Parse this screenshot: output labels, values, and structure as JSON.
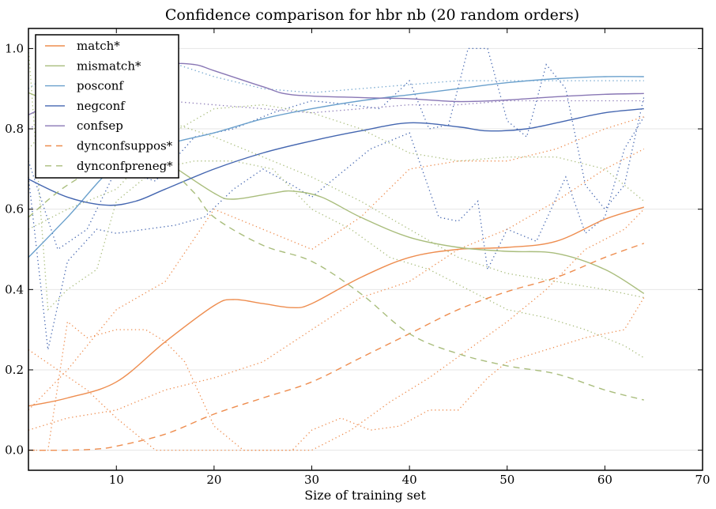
{
  "chart_data": {
    "type": "line",
    "title": "Confidence comparison for hbr nb (20 random orders)",
    "xlabel": "Size of training set",
    "ylabel": "",
    "xlim": [
      1,
      70
    ],
    "ylim": [
      -0.05,
      1.05
    ],
    "xticks": [
      10,
      20,
      30,
      40,
      50,
      60,
      70
    ],
    "xtick_labels": [
      "10",
      "20",
      "30",
      "40",
      "50",
      "60",
      "70"
    ],
    "yticks": [
      0.0,
      0.2,
      0.4,
      0.6,
      0.8,
      1.0
    ],
    "ytick_labels": [
      "0.0",
      "0.2",
      "0.4",
      "0.6",
      "0.8",
      "1.0"
    ],
    "grid": "horizontal",
    "legend_position": "top-left",
    "colors": {
      "match": "#ee8d4f",
      "mismatch": "#a9bd7c",
      "posconf": "#6aa0cc",
      "negconf": "#4466b0",
      "confsep": "#8977b5"
    },
    "series": [
      {
        "name": "match*",
        "style": "solid",
        "color": "#ee8d4f",
        "x": [
          1,
          5,
          10,
          15,
          20,
          22,
          25,
          28,
          30,
          35,
          40,
          45,
          50,
          55,
          60,
          64
        ],
        "y": [
          0.11,
          0.13,
          0.17,
          0.27,
          0.36,
          0.375,
          0.365,
          0.355,
          0.365,
          0.43,
          0.48,
          0.5,
          0.505,
          0.52,
          0.575,
          0.605
        ]
      },
      {
        "name": "mismatch*",
        "style": "solid",
        "color": "#a9bd7c",
        "x": [
          1,
          5,
          10,
          15,
          20,
          22,
          26,
          28,
          31,
          35,
          40,
          45,
          50,
          55,
          60,
          64
        ],
        "y": [
          0.89,
          0.85,
          0.8,
          0.72,
          0.64,
          0.625,
          0.64,
          0.645,
          0.63,
          0.58,
          0.53,
          0.505,
          0.495,
          0.49,
          0.45,
          0.39
        ]
      },
      {
        "name": "posconf",
        "style": "solid",
        "color": "#6aa0cc",
        "x": [
          1,
          5,
          10,
          15,
          20,
          25,
          30,
          35,
          40,
          45,
          50,
          55,
          60,
          64
        ],
        "y": [
          0.48,
          0.58,
          0.71,
          0.76,
          0.79,
          0.825,
          0.85,
          0.87,
          0.885,
          0.9,
          0.915,
          0.925,
          0.93,
          0.93
        ]
      },
      {
        "name": "negconf",
        "style": "solid",
        "color": "#4466b0",
        "x": [
          1,
          5,
          9,
          12,
          15,
          20,
          25,
          30,
          35,
          40,
          45,
          48,
          52,
          56,
          60,
          64
        ],
        "y": [
          0.675,
          0.63,
          0.61,
          0.62,
          0.65,
          0.7,
          0.74,
          0.77,
          0.795,
          0.815,
          0.805,
          0.795,
          0.8,
          0.82,
          0.84,
          0.85
        ]
      },
      {
        "name": "confsep",
        "style": "solid",
        "color": "#8977b5",
        "x": [
          1,
          5,
          10,
          15,
          18,
          20,
          25,
          28,
          35,
          40,
          45,
          50,
          55,
          60,
          64
        ],
        "y": [
          0.835,
          0.88,
          0.93,
          0.96,
          0.96,
          0.945,
          0.905,
          0.885,
          0.878,
          0.875,
          0.868,
          0.872,
          0.88,
          0.886,
          0.888
        ]
      },
      {
        "name": "dynconfsuppos*",
        "style": "dashed",
        "color": "#ee8d4f",
        "x": [
          1,
          5,
          8,
          10,
          15,
          20,
          25,
          30,
          35,
          40,
          45,
          50,
          55,
          60,
          64
        ],
        "y": [
          0.0,
          0.0,
          0.003,
          0.01,
          0.04,
          0.09,
          0.13,
          0.17,
          0.23,
          0.29,
          0.35,
          0.395,
          0.43,
          0.48,
          0.515
        ]
      },
      {
        "name": "dynconfpreneg*",
        "style": "dashed",
        "color": "#a9bd7c",
        "x": [
          1,
          5,
          10,
          15,
          18,
          20,
          25,
          30,
          35,
          40,
          45,
          50,
          55,
          60,
          64
        ],
        "y": [
          0.58,
          0.66,
          0.72,
          0.7,
          0.64,
          0.58,
          0.51,
          0.47,
          0.39,
          0.29,
          0.24,
          0.21,
          0.19,
          0.15,
          0.125
        ]
      }
    ],
    "dotted_series": [
      {
        "color": "#4466b0",
        "x": [
          1,
          3,
          5,
          8,
          10,
          13,
          16,
          19,
          22,
          25,
          28,
          30,
          33,
          36,
          40,
          43,
          45,
          47,
          48,
          50,
          53,
          56,
          58,
          60,
          62,
          64
        ],
        "y": [
          0.68,
          0.25,
          0.47,
          0.55,
          0.54,
          0.55,
          0.56,
          0.58,
          0.65,
          0.7,
          0.66,
          0.63,
          0.69,
          0.75,
          0.79,
          0.58,
          0.57,
          0.62,
          0.45,
          0.55,
          0.52,
          0.68,
          0.54,
          0.58,
          0.75,
          0.83
        ]
      },
      {
        "color": "#4466b0",
        "x": [
          1,
          4,
          7,
          10,
          14,
          18,
          22,
          26,
          30,
          34,
          37,
          40,
          42,
          44,
          46,
          48,
          50,
          52,
          54,
          56,
          58,
          60,
          62,
          64
        ],
        "y": [
          0.72,
          0.5,
          0.55,
          0.7,
          0.67,
          0.78,
          0.8,
          0.84,
          0.87,
          0.86,
          0.85,
          0.92,
          0.8,
          0.81,
          1.0,
          1.0,
          0.82,
          0.78,
          0.96,
          0.9,
          0.66,
          0.6,
          0.66,
          0.88
        ]
      },
      {
        "color": "#6aa0cc",
        "x": [
          1,
          5,
          10,
          15,
          20,
          25,
          30,
          35,
          40,
          45,
          50,
          55,
          60,
          64
        ],
        "y": [
          0.9,
          0.97,
          0.99,
          0.97,
          0.93,
          0.9,
          0.89,
          0.9,
          0.91,
          0.92,
          0.92,
          0.92,
          0.92,
          0.92
        ]
      },
      {
        "color": "#8977b5",
        "x": [
          1,
          5,
          10,
          15,
          20,
          25,
          30,
          35,
          40,
          45,
          50,
          55,
          60,
          64
        ],
        "y": [
          0.8,
          0.85,
          0.88,
          0.87,
          0.86,
          0.85,
          0.84,
          0.85,
          0.86,
          0.86,
          0.87,
          0.87,
          0.87,
          0.87
        ]
      },
      {
        "color": "#a9bd7c",
        "x": [
          1,
          3,
          5,
          8,
          10,
          14,
          18,
          22,
          26,
          30,
          34,
          38,
          42,
          46,
          50,
          54,
          58,
          62,
          64
        ],
        "y": [
          1.0,
          0.35,
          0.4,
          0.45,
          0.62,
          0.7,
          0.72,
          0.72,
          0.7,
          0.6,
          0.55,
          0.48,
          0.45,
          0.4,
          0.35,
          0.33,
          0.3,
          0.26,
          0.23
        ]
      },
      {
        "color": "#a9bd7c",
        "x": [
          1,
          5,
          10,
          15,
          20,
          25,
          30,
          35,
          40,
          45,
          50,
          55,
          60,
          64
        ],
        "y": [
          0.75,
          0.86,
          0.85,
          0.82,
          0.78,
          0.73,
          0.68,
          0.62,
          0.55,
          0.48,
          0.44,
          0.42,
          0.4,
          0.38
        ]
      },
      {
        "color": "#a9bd7c",
        "x": [
          1,
          5,
          10,
          15,
          20,
          25,
          30,
          35,
          40,
          45,
          50,
          55,
          60,
          64
        ],
        "y": [
          0.55,
          0.6,
          0.65,
          0.78,
          0.85,
          0.86,
          0.84,
          0.8,
          0.74,
          0.72,
          0.73,
          0.73,
          0.7,
          0.62
        ]
      },
      {
        "color": "#ee8d4f",
        "x": [
          1,
          3,
          5,
          7,
          10,
          13,
          15,
          17,
          20,
          23,
          26,
          28,
          30,
          33,
          36,
          39,
          42,
          45,
          48,
          50,
          54,
          58,
          62,
          64
        ],
        "y": [
          0.0,
          0.0,
          0.32,
          0.28,
          0.3,
          0.3,
          0.27,
          0.22,
          0.06,
          0.0,
          0.0,
          0.0,
          0.05,
          0.08,
          0.05,
          0.06,
          0.1,
          0.1,
          0.18,
          0.22,
          0.25,
          0.28,
          0.3,
          0.38
        ]
      },
      {
        "color": "#ee8d4f",
        "x": [
          1,
          4,
          7,
          10,
          14,
          18,
          22,
          26,
          30,
          34,
          38,
          42,
          46,
          50,
          54,
          58,
          62,
          64
        ],
        "y": [
          0.25,
          0.2,
          0.15,
          0.08,
          0.0,
          0.0,
          0.0,
          0.0,
          0.0,
          0.05,
          0.12,
          0.18,
          0.25,
          0.32,
          0.4,
          0.5,
          0.55,
          0.6
        ]
      },
      {
        "color": "#ee8d4f",
        "x": [
          1,
          5,
          10,
          15,
          20,
          25,
          30,
          35,
          40,
          45,
          50,
          55,
          60,
          64
        ],
        "y": [
          0.1,
          0.2,
          0.35,
          0.42,
          0.6,
          0.55,
          0.5,
          0.58,
          0.7,
          0.72,
          0.72,
          0.75,
          0.8,
          0.83
        ]
      },
      {
        "color": "#ee8d4f",
        "x": [
          1,
          5,
          10,
          15,
          20,
          25,
          30,
          35,
          40,
          45,
          50,
          55,
          60,
          64
        ],
        "y": [
          0.05,
          0.08,
          0.1,
          0.15,
          0.18,
          0.22,
          0.3,
          0.38,
          0.42,
          0.5,
          0.55,
          0.62,
          0.7,
          0.75
        ]
      }
    ]
  },
  "legend": {
    "items": [
      {
        "label": "match*",
        "color": "#ee8d4f",
        "style": "solid"
      },
      {
        "label": "mismatch*",
        "color": "#a9bd7c",
        "style": "solid"
      },
      {
        "label": "posconf",
        "color": "#6aa0cc",
        "style": "solid"
      },
      {
        "label": "negconf",
        "color": "#4466b0",
        "style": "solid"
      },
      {
        "label": "confsep",
        "color": "#8977b5",
        "style": "solid"
      },
      {
        "label": "dynconfsuppos*",
        "color": "#ee8d4f",
        "style": "dashed"
      },
      {
        "label": "dynconfpreneg*",
        "color": "#a9bd7c",
        "style": "dashed"
      }
    ]
  }
}
